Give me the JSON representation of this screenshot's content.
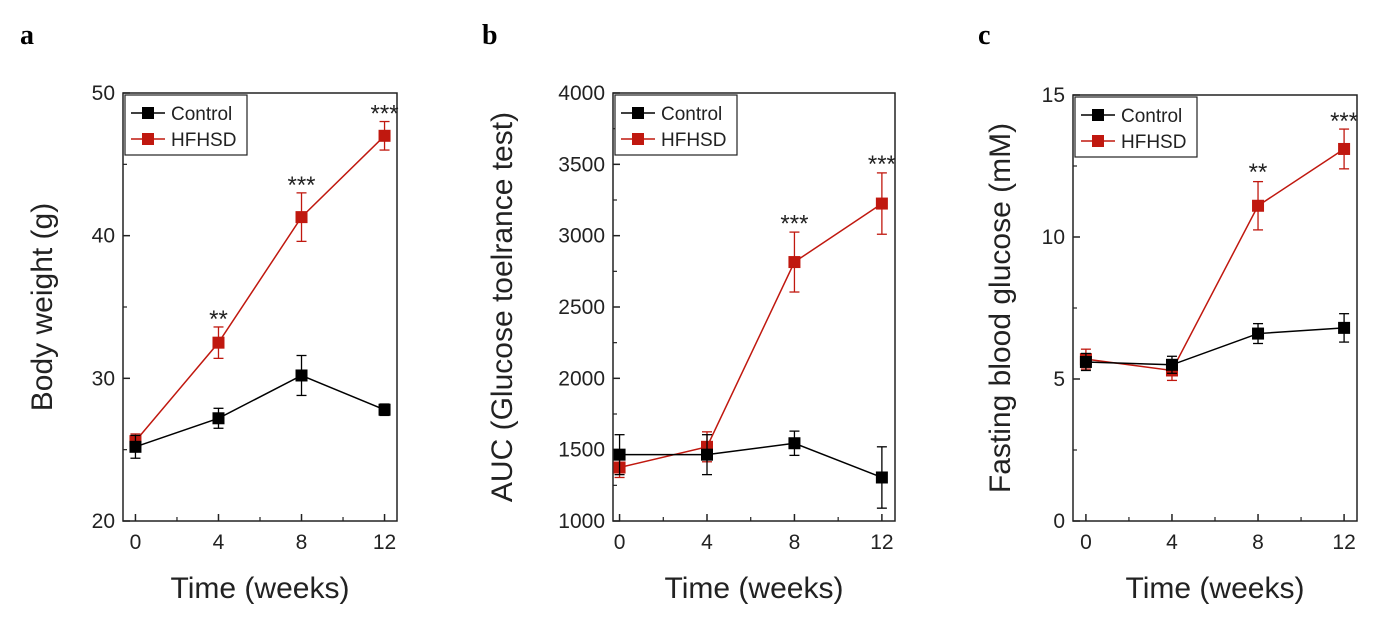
{
  "chart_data": [
    {
      "panel_label": "a",
      "type": "line",
      "title": "",
      "xlabel": "Time (weeks)",
      "ylabel": "Body weight (g)",
      "x": [
        0,
        4,
        8,
        12
      ],
      "xticks": [
        0,
        4,
        8,
        12
      ],
      "xlim": [
        -0.6,
        12.6
      ],
      "ylim": [
        20,
        50
      ],
      "yticks": [
        20,
        30,
        40,
        50
      ],
      "grid": false,
      "legend": "top-left",
      "series": [
        {
          "name": "Control",
          "color": "#000000",
          "values": [
            25.2,
            27.2,
            30.2,
            27.8
          ],
          "errors": [
            0.8,
            0.7,
            1.4,
            0.4
          ]
        },
        {
          "name": "HFHSD",
          "color": "#c0180f",
          "values": [
            25.6,
            32.5,
            41.3,
            47.0
          ],
          "errors": [
            0.5,
            1.1,
            1.7,
            1.0
          ]
        }
      ],
      "annotations": [
        {
          "x": 4,
          "y": 33.6,
          "text": "**"
        },
        {
          "x": 8,
          "y": 43.0,
          "text": "***"
        },
        {
          "x": 12,
          "y": 48.0,
          "text": "***"
        }
      ]
    },
    {
      "panel_label": "b",
      "type": "line",
      "title": "",
      "xlabel": "Time (weeks)",
      "ylabel": "AUC (Glucose toelrance test)",
      "x": [
        0,
        4,
        8,
        12
      ],
      "xticks": [
        0,
        4,
        8,
        12
      ],
      "xlim": [
        -0.3,
        12.6
      ],
      "ylim": [
        1000,
        4000
      ],
      "yticks": [
        1000,
        1500,
        2000,
        2500,
        3000,
        3500,
        4000
      ],
      "grid": false,
      "legend": "top-left",
      "series": [
        {
          "name": "Control",
          "color": "#000000",
          "values": [
            1465,
            1465,
            1545,
            1305
          ],
          "errors": [
            140,
            140,
            85,
            215
          ]
        },
        {
          "name": "HFHSD",
          "color": "#c0180f",
          "values": [
            1375,
            1520,
            2815,
            3225
          ],
          "errors": [
            70,
            105,
            210,
            215
          ]
        }
      ],
      "annotations": [
        {
          "x": 8,
          "y": 3030,
          "text": "***"
        },
        {
          "x": 12,
          "y": 3445,
          "text": "***"
        }
      ]
    },
    {
      "panel_label": "c",
      "type": "line",
      "title": "",
      "xlabel": "Time (weeks)",
      "ylabel": "Fasting blood glucose (mM)",
      "x": [
        0,
        4,
        8,
        12
      ],
      "xticks": [
        0,
        4,
        8,
        12
      ],
      "xlim": [
        -0.6,
        12.6
      ],
      "ylim": [
        0,
        15
      ],
      "yticks": [
        0,
        5,
        10,
        15
      ],
      "grid": false,
      "legend": "top-left",
      "series": [
        {
          "name": "Control",
          "color": "#000000",
          "values": [
            5.6,
            5.5,
            6.6,
            6.8
          ],
          "errors": [
            0.3,
            0.3,
            0.35,
            0.5
          ]
        },
        {
          "name": "HFHSD",
          "color": "#c0180f",
          "values": [
            5.7,
            5.3,
            11.1,
            13.1
          ],
          "errors": [
            0.35,
            0.35,
            0.85,
            0.7
          ]
        }
      ],
      "annotations": [
        {
          "x": 8,
          "y": 12.0,
          "text": "**"
        },
        {
          "x": 12,
          "y": 13.8,
          "text": "***"
        }
      ]
    }
  ]
}
